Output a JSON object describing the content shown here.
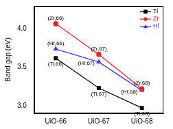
{
  "chart_data": {
    "type": "line",
    "categories": [
      "UiO-66",
      "UiO-67",
      "UiO-68"
    ],
    "y_label": "Band gap (eV)",
    "ylim": [
      2.9,
      4.3
    ],
    "yticks": [
      {
        "value": 3,
        "label": "3.0"
      },
      {
        "value": 3.5,
        "label": "3.5"
      },
      {
        "value": 4,
        "label": "4.0"
      }
    ],
    "grid": false,
    "legend": "upper right",
    "series": [
      {
        "name": "Ti",
        "color": "#000000",
        "marker": "square",
        "values": [
          3.62,
          3.23,
          2.97
        ]
      },
      {
        "name": "Zr",
        "color": "#e8262a",
        "marker": "circle",
        "values": [
          4.07,
          3.67,
          3.22
        ]
      },
      {
        "name": "Hf",
        "color": "#3d3df0",
        "marker": "triangle",
        "values": [
          3.74,
          3.57,
          3.2
        ]
      }
    ],
    "annotations": [
      {
        "text": "(Zr,66)",
        "x": "UiO-66",
        "y": 4.07
      },
      {
        "text": "(Hf,66)",
        "x": "UiO-66",
        "y": 3.74
      },
      {
        "text": "(Ti,66)",
        "x": "UiO-66",
        "y": 3.62
      },
      {
        "text": "(Zr,67)",
        "x": "UiO-67",
        "y": 3.67
      },
      {
        "text": "(Hf,67)",
        "x": "UiO-67",
        "y": 3.57
      },
      {
        "text": "(Ti,67)",
        "x": "UiO-67",
        "y": 3.23
      },
      {
        "text": "(Zr,68)",
        "x": "UiO-68",
        "y": 3.22
      },
      {
        "text": "(Hf,68)",
        "x": "UiO-68",
        "y": 3.2
      },
      {
        "text": "(Ti,68)",
        "x": "UiO-68",
        "y": 2.97
      }
    ]
  }
}
